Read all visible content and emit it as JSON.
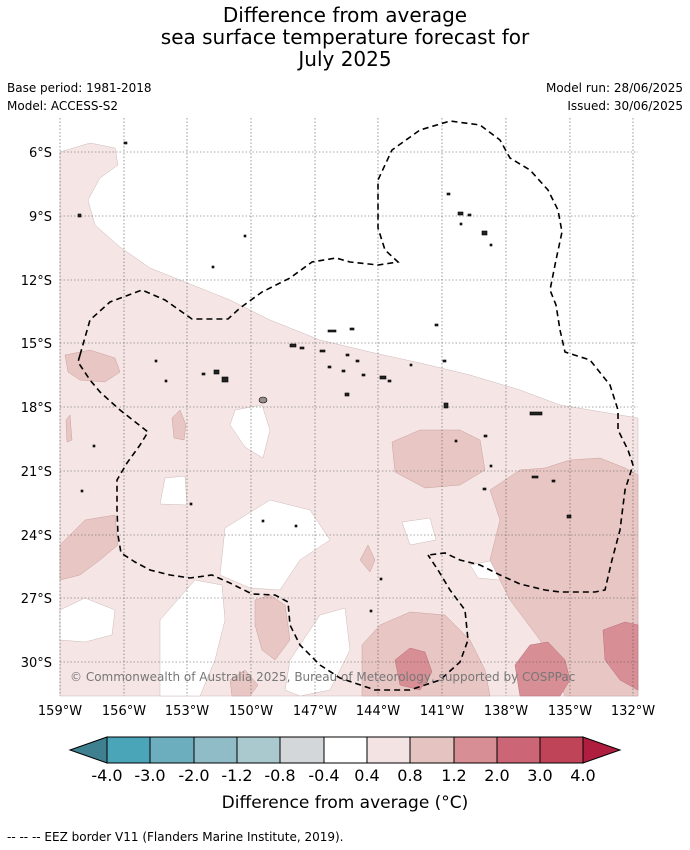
{
  "title": {
    "line1": "Difference from average",
    "line2": "sea surface temperature forecast for",
    "line3": "July 2025"
  },
  "meta": {
    "base_period": "Base period: 1981-2018",
    "model": "Model: ACCESS-S2",
    "model_run": "Model run: 28/06/2025",
    "issued": "Issued: 30/06/2025"
  },
  "map": {
    "lat_labels": [
      "6°S",
      "9°S",
      "12°S",
      "15°S",
      "18°S",
      "21°S",
      "24°S",
      "27°S",
      "30°S"
    ],
    "lon_labels": [
      "159°W",
      "156°W",
      "153°W",
      "150°W",
      "147°W",
      "144°W",
      "141°W",
      "138°W",
      "135°W",
      "132°W"
    ],
    "copyright": "© Commonwealth of Australia 2025, Bureau of Meteorology, supported by COSPPac"
  },
  "colorbar": {
    "ticks": [
      "-4.0",
      "-3.0",
      "-2.0",
      "-1.2",
      "-0.8",
      "-0.4",
      "0.4",
      "0.8",
      "1.2",
      "2.0",
      "3.0",
      "4.0"
    ],
    "colors": [
      "#3f8090",
      "#4aa5b8",
      "#6daebe",
      "#8fbcc7",
      "#a9c9ce",
      "#d3d7d9",
      "#ffffff",
      "#f3e4e3",
      "#e5c3c1",
      "#d88e95",
      "#cc6676",
      "#c04458",
      "#b01e3f"
    ],
    "label": "Difference from average (°C)"
  },
  "footer": "--  --  -- EEZ border V11 (Flanders Marine Institute, 2019)."
}
